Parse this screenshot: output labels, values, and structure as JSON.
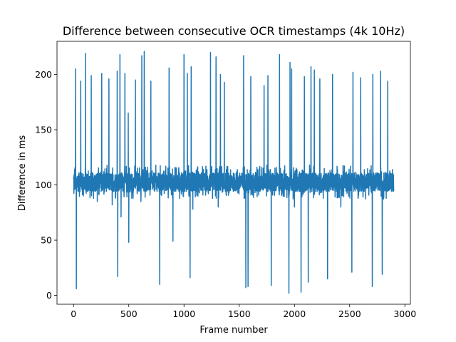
{
  "chart_data": {
    "type": "line",
    "title": "Difference between consecutive OCR timestamps (4k 10Hz)",
    "xlabel": "Frame number",
    "ylabel": "Difference in ms",
    "xlim": [
      -150,
      3050
    ],
    "ylim": [
      -8,
      230
    ],
    "xticks": [
      0,
      500,
      1000,
      1500,
      2000,
      2500,
      3000
    ],
    "yticks": [
      0,
      50,
      100,
      150,
      200
    ],
    "grid": false,
    "line_color": "#1f77b4",
    "series": [
      {
        "n_points": 2900,
        "baseline_min": 87,
        "baseline_max": 118,
        "spikes": [
          {
            "x": 18,
            "y": 205
          },
          {
            "x": 25,
            "y": 6
          },
          {
            "x": 65,
            "y": 194
          },
          {
            "x": 108,
            "y": 219
          },
          {
            "x": 160,
            "y": 199
          },
          {
            "x": 215,
            "y": 85
          },
          {
            "x": 255,
            "y": 201
          },
          {
            "x": 320,
            "y": 196
          },
          {
            "x": 350,
            "y": 82
          },
          {
            "x": 395,
            "y": 203
          },
          {
            "x": 400,
            "y": 17
          },
          {
            "x": 420,
            "y": 218
          },
          {
            "x": 430,
            "y": 71
          },
          {
            "x": 465,
            "y": 201
          },
          {
            "x": 495,
            "y": 165
          },
          {
            "x": 500,
            "y": 48
          },
          {
            "x": 560,
            "y": 195
          },
          {
            "x": 610,
            "y": 85
          },
          {
            "x": 618,
            "y": 217
          },
          {
            "x": 640,
            "y": 221
          },
          {
            "x": 700,
            "y": 194
          },
          {
            "x": 780,
            "y": 10
          },
          {
            "x": 865,
            "y": 206
          },
          {
            "x": 900,
            "y": 49
          },
          {
            "x": 1000,
            "y": 218
          },
          {
            "x": 1030,
            "y": 201
          },
          {
            "x": 1055,
            "y": 16
          },
          {
            "x": 1065,
            "y": 207
          },
          {
            "x": 1080,
            "y": 78
          },
          {
            "x": 1240,
            "y": 220
          },
          {
            "x": 1290,
            "y": 216
          },
          {
            "x": 1310,
            "y": 80
          },
          {
            "x": 1330,
            "y": 200
          },
          {
            "x": 1365,
            "y": 193
          },
          {
            "x": 1540,
            "y": 217
          },
          {
            "x": 1560,
            "y": 7
          },
          {
            "x": 1580,
            "y": 8
          },
          {
            "x": 1605,
            "y": 198
          },
          {
            "x": 1725,
            "y": 190
          },
          {
            "x": 1760,
            "y": 199
          },
          {
            "x": 1790,
            "y": 9
          },
          {
            "x": 1865,
            "y": 218
          },
          {
            "x": 1950,
            "y": 2
          },
          {
            "x": 1960,
            "y": 211
          },
          {
            "x": 1975,
            "y": 205
          },
          {
            "x": 2000,
            "y": 80
          },
          {
            "x": 2060,
            "y": 3
          },
          {
            "x": 2090,
            "y": 198
          },
          {
            "x": 2125,
            "y": 12
          },
          {
            "x": 2150,
            "y": 207
          },
          {
            "x": 2180,
            "y": 204
          },
          {
            "x": 2230,
            "y": 196
          },
          {
            "x": 2300,
            "y": 15
          },
          {
            "x": 2345,
            "y": 200
          },
          {
            "x": 2420,
            "y": 80
          },
          {
            "x": 2520,
            "y": 21
          },
          {
            "x": 2530,
            "y": 202
          },
          {
            "x": 2600,
            "y": 197
          },
          {
            "x": 2705,
            "y": 8
          },
          {
            "x": 2710,
            "y": 200
          },
          {
            "x": 2780,
            "y": 203
          },
          {
            "x": 2795,
            "y": 19
          },
          {
            "x": 2845,
            "y": 194
          }
        ]
      }
    ]
  }
}
